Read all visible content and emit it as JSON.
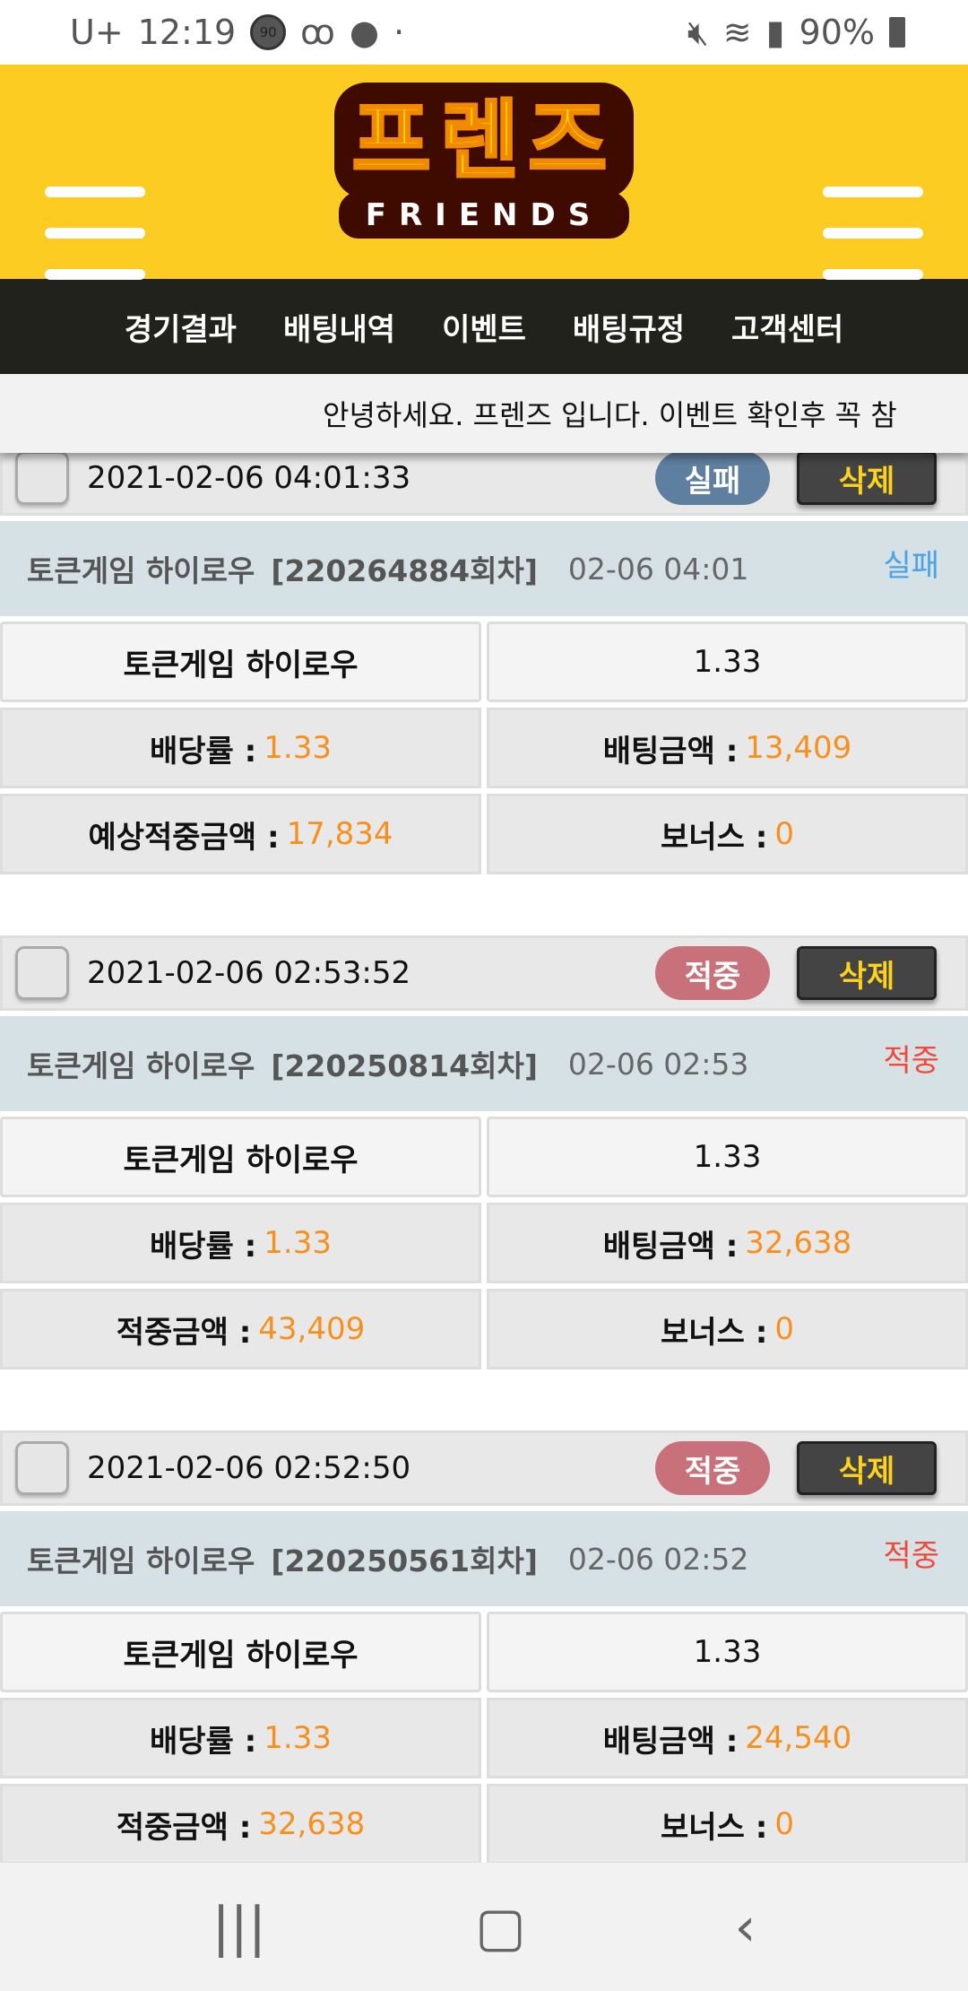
{
  "status": {
    "carrier": "U+",
    "time": "12:19",
    "badge": "90",
    "battery": "90%"
  },
  "header": {
    "logo_ko": "프렌즈",
    "logo_en": "FRIENDS"
  },
  "nav": [
    "경기결과",
    "배팅내역",
    "이벤트",
    "배팅규정",
    "고객센터"
  ],
  "notice": "안녕하세요. 프렌즈 입니다. 이벤트 확인후 꼭 참",
  "delete_label": "삭제",
  "colors": {
    "fail": "#5f7fa0",
    "win": "#c8717a",
    "fail_text": "#4aa3e8",
    "win_text": "#f04a3a",
    "value": "#f7901e"
  },
  "cards": [
    {
      "datetime": "2021-02-06 04:01:33",
      "status": "실패",
      "type": "fail",
      "game": "토큰게임 하이로우",
      "round": "[220264884회차]",
      "time": "02-06 04:01",
      "pick": "토큰게임 하이로우",
      "pick_odds": "1.33",
      "odds_label": "배당률 :",
      "odds": "1.33",
      "bet_label": "배팅금액 :",
      "bet": "13,409",
      "win_label": "예상적중금액 :",
      "win": "17,834",
      "bonus_label": "보너스 :",
      "bonus": "0"
    },
    {
      "datetime": "2021-02-06 02:53:52",
      "status": "적중",
      "type": "win",
      "game": "토큰게임 하이로우",
      "round": "[220250814회차]",
      "time": "02-06 02:53",
      "pick": "토큰게임 하이로우",
      "pick_odds": "1.33",
      "odds_label": "배당률 :",
      "odds": "1.33",
      "bet_label": "배팅금액 :",
      "bet": "32,638",
      "win_label": "적중금액 :",
      "win": "43,409",
      "bonus_label": "보너스 :",
      "bonus": "0"
    },
    {
      "datetime": "2021-02-06 02:52:50",
      "status": "적중",
      "type": "win",
      "game": "토큰게임 하이로우",
      "round": "[220250561회차]",
      "time": "02-06 02:52",
      "pick": "토큰게임 하이로우",
      "pick_odds": "1.33",
      "odds_label": "배당률 :",
      "odds": "1.33",
      "bet_label": "배팅금액 :",
      "bet": "24,540",
      "win_label": "적중금액 :",
      "win": "32,638",
      "bonus_label": "보너스 :",
      "bonus": "0"
    }
  ]
}
